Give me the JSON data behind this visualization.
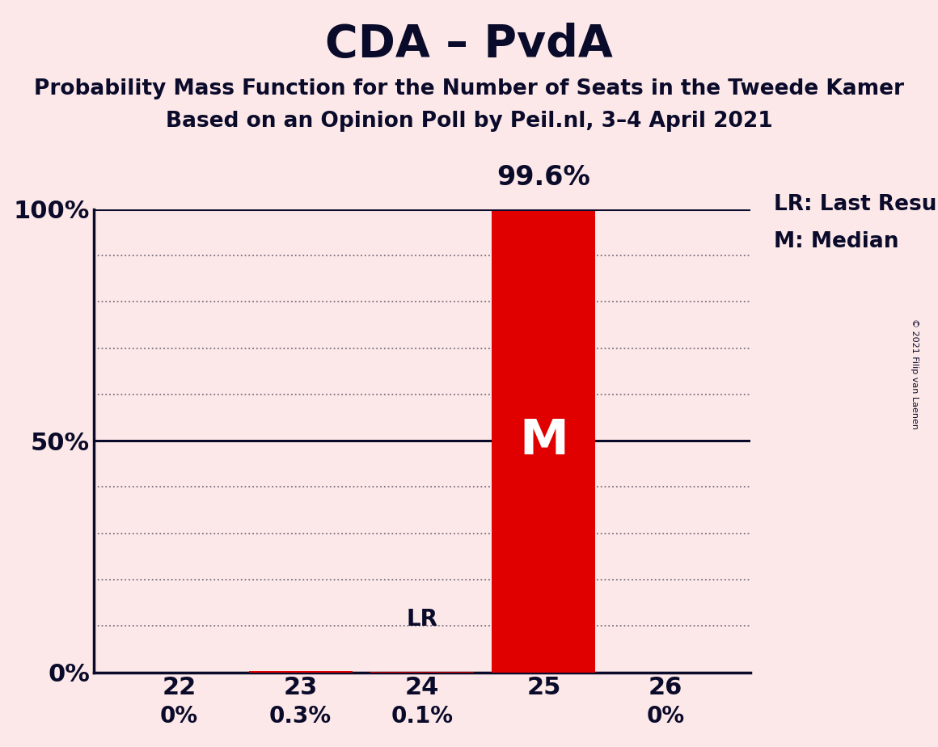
{
  "title": "CDA – PvdA",
  "subtitle1": "Probability Mass Function for the Number of Seats in the Tweede Kamer",
  "subtitle2": "Based on an Opinion Poll by Peil.nl, 3–4 April 2021",
  "copyright": "© 2021 Filip van Laenen",
  "background_color": "#fce8e8",
  "bar_color": "#e00000",
  "text_color": "#0a0a2a",
  "categories": [
    22,
    23,
    24,
    25,
    26
  ],
  "values": [
    0.0,
    0.003,
    0.001,
    0.996,
    0.0
  ],
  "bar_labels": [
    "0%",
    "0.3%",
    "0.1%",
    "99.6%",
    "0%"
  ],
  "median_seat": 25,
  "last_result_seat": 24,
  "ylim": [
    0,
    1.0
  ],
  "yticks": [
    0.0,
    0.5,
    1.0
  ],
  "ytick_labels": [
    "0%",
    "50%",
    "100%"
  ],
  "legend_lr": "LR: Last Result",
  "legend_m": "M: Median",
  "grid_color": "#0a0a2a",
  "title_fontsize": 40,
  "subtitle_fontsize": 19,
  "tick_fontsize": 22,
  "bar_label_fontsize": 20,
  "legend_fontsize": 19,
  "copyright_fontsize": 8,
  "m_fontsize": 44
}
